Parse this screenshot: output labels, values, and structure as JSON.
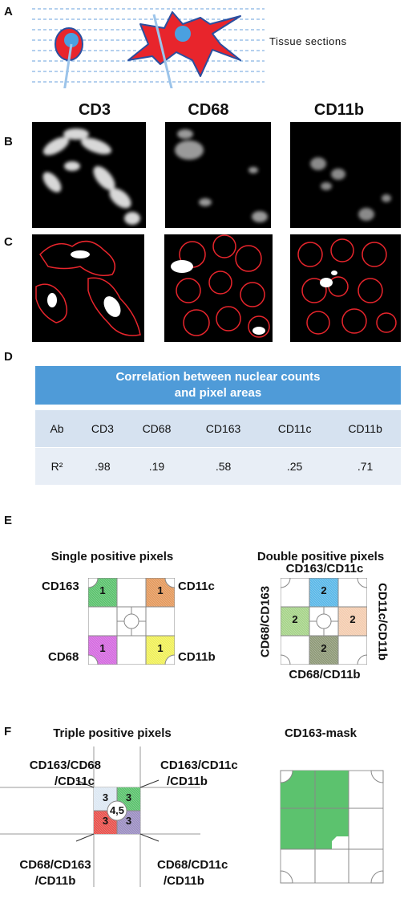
{
  "panels": {
    "a": "A",
    "b": "B",
    "c": "C",
    "d": "D",
    "e": "E",
    "f": "F"
  },
  "panel_a": {
    "tissue_label": "Tissue sections"
  },
  "markers": {
    "cd3": "CD3",
    "cd68": "CD68",
    "cd11b": "CD11b"
  },
  "table": {
    "title_line1": "Correlation between nuclear counts",
    "title_line2": "and pixel areas",
    "header": [
      "Ab",
      "CD3",
      "CD68",
      "CD163",
      "CD11c",
      "CD11b"
    ],
    "row_label": "R²",
    "values": [
      ".98",
      ".19",
      ".58",
      ".25",
      ".71"
    ]
  },
  "panel_e": {
    "single_title": "Single positive pixels",
    "double_title": "Double positive pixels",
    "single": {
      "tl": "CD163",
      "tr": "CD11c",
      "bl": "CD68",
      "br": "CD11b",
      "num": "1"
    },
    "double": {
      "top": "CD163/CD11c",
      "right": "CD11c/CD11b",
      "bottom": "CD68/CD11b",
      "left": "CD68/CD163",
      "num": "2"
    }
  },
  "panel_f": {
    "triple_title": "Triple positive pixels",
    "mask_title": "CD163-mask",
    "tl_line1": "CD163/CD68",
    "tl_line2": "/CD11c",
    "tr_line1": "CD163/CD11c",
    "tr_line2": "/CD11b",
    "bl_line1": "CD68/CD163",
    "bl_line2": "/CD11b",
    "br_line1": "CD68/CD11c",
    "br_line2": "/CD11b",
    "num": "3",
    "center": "4,5"
  },
  "colors": {
    "green": "#5cc26e",
    "orange": "#e49a5e",
    "magenta": "#d56be0",
    "yellow": "#f0f05a",
    "blue": "#5bb8e8",
    "light_green": "#a7d48a",
    "peach": "#f4cdb0",
    "olive": "#8f9a78",
    "red": "#e8524d",
    "purple": "#9c8fc2",
    "pale_blue": "#dde8f3",
    "table_head": "#4f9bd8",
    "table_cell": "#d6e2f0",
    "table_cell2": "#e8eef6"
  }
}
